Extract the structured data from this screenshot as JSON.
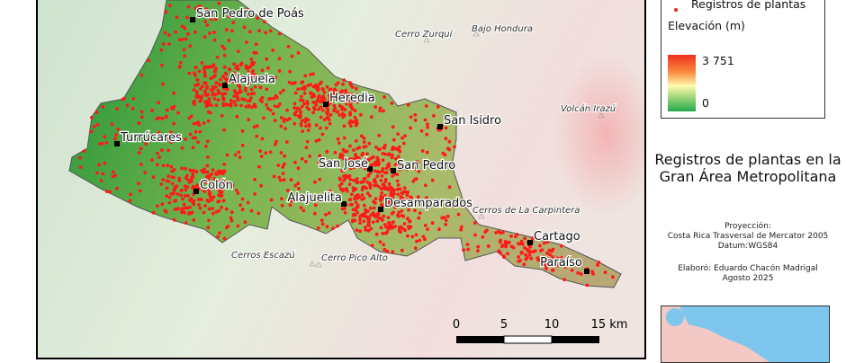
{
  "legend": {
    "points_label": "Registros de plantas",
    "elevation_title": "Elevación (m)",
    "elevation_max": "3 751",
    "elevation_min": "0",
    "point_color": "#ff1a1a"
  },
  "title": "Registros de plantas en la Gran Área Metropolitana",
  "projection": {
    "label": "Proyección:",
    "name": "Costa Rica Trasversal de Mercator 2005",
    "datum": "Datum:WGS84"
  },
  "credits": {
    "author": "Elaboró: Eduardo Chacón Madrigal",
    "date": "Agosto 2025"
  },
  "cities": [
    "San Pedro de Poás",
    "Alajuela",
    "Heredia",
    "San Isidro",
    "Turrúcares",
    "San José",
    "San Pedro",
    "Colón",
    "Alajuelita",
    "Desamparados",
    "Cartago",
    "Paraíso"
  ],
  "peaks": [
    "Cerro Zurquí",
    "Bajo Hondura",
    "Volcán Irazú",
    "Cerros de La Carpintera",
    "Cerros Escazú",
    "Cerro Pico Alto"
  ],
  "scale_bar": {
    "labels": [
      "0",
      "5",
      "10",
      "15 km"
    ]
  }
}
